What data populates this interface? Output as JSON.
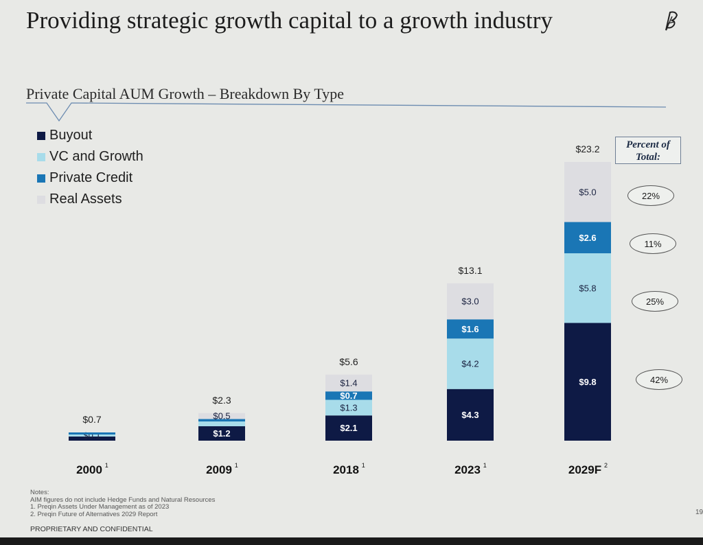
{
  "header": {
    "title": "Providing strategic growth capital to a growth industry",
    "subtitle": "Private Capital AUM Growth – Breakdown By Type",
    "logo_icon": "feather-logo-icon"
  },
  "legend": [
    {
      "label": "Buyout",
      "color": "#0e1a45"
    },
    {
      "label": "VC and Growth",
      "color": "#a8dcea"
    },
    {
      "label": "Private Credit",
      "color": "#1a76b5"
    },
    {
      "label": "Real Assets",
      "color": "#dddde1"
    }
  ],
  "chart_data": {
    "type": "bar",
    "stacked": true,
    "categories": [
      "2000",
      "2009",
      "2018",
      "2023",
      "2029F"
    ],
    "category_superscripts": [
      "1",
      "1",
      "1",
      "1",
      "2"
    ],
    "series": [
      {
        "name": "Buyout",
        "color": "#0e1a45",
        "values": [
          0.5,
          1.2,
          2.1,
          4.3,
          9.8
        ],
        "labels": [
          "",
          "$1.2",
          "$2.1",
          "$4.3",
          "$9.8"
        ]
      },
      {
        "name": "VC and Growth",
        "color": "#a8dcea",
        "values": [
          0.1,
          0.4,
          1.3,
          4.2,
          5.8
        ],
        "labels": [
          "$0.1",
          "",
          "$1.3",
          "$4.2",
          "$5.8"
        ]
      },
      {
        "name": "Private Credit",
        "color": "#1a76b5",
        "values": [
          0.1,
          0.2,
          0.7,
          1.6,
          2.6
        ],
        "labels": [
          "",
          "",
          "$0.7",
          "$1.6",
          "$2.6"
        ]
      },
      {
        "name": "Real Assets",
        "color": "#dddde1",
        "values": [
          0.0,
          0.5,
          1.4,
          3.0,
          5.0
        ],
        "labels": [
          "",
          "$0.5",
          "$1.4",
          "$3.0",
          "$5.0"
        ]
      }
    ],
    "totals": [
      "$0.7",
      "$2.3",
      "$5.6",
      "$13.1",
      "$23.2"
    ]
  },
  "percent_of_total": {
    "header": "Percent of Total:",
    "values": [
      "22%",
      "11%",
      "25%",
      "42%"
    ]
  },
  "notes": {
    "lines": [
      "Notes:",
      "AIM figures do not include Hedge Funds and Natural Resources",
      "1. Preqin Assets Under Management as of 2023",
      "2. Preqin Future of Alternatives 2029 Report"
    ],
    "confidential": "PROPRIETARY AND CONFIDENTIAL",
    "page": "19"
  }
}
